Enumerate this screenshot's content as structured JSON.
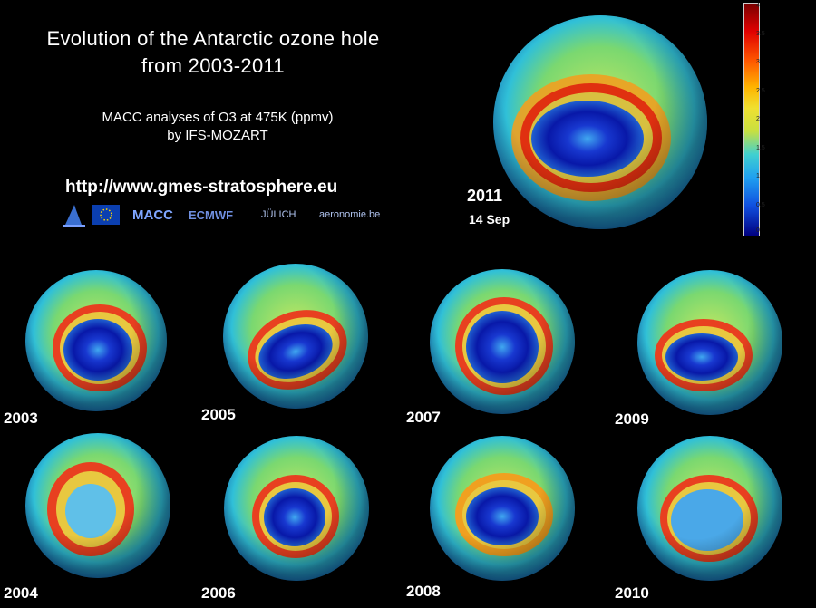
{
  "title_line1": "Evolution of the Antarctic ozone hole",
  "title_line2": "from 2003-2011",
  "subtitle_line1": "MACC analyses of O3 at 475K (ppmv)",
  "subtitle_line2": "by IFS-MOZART",
  "url": "http://www.gmes-stratosphere.eu",
  "logos": [
    "MACC",
    "ECMWF",
    "JÜLICH",
    "aeronomie.be"
  ],
  "featured": {
    "year": "2011",
    "date": "14 Sep"
  },
  "years": [
    "2003",
    "2005",
    "2007",
    "2009",
    "2004",
    "2006",
    "2008",
    "2010"
  ],
  "colorbar_ticks": [
    "4",
    "3.5",
    "3",
    "2.5",
    "2",
    "1.5",
    "1",
    "0.5",
    "0"
  ],
  "colors": {
    "background": "#000000",
    "text": "#ffffff"
  }
}
